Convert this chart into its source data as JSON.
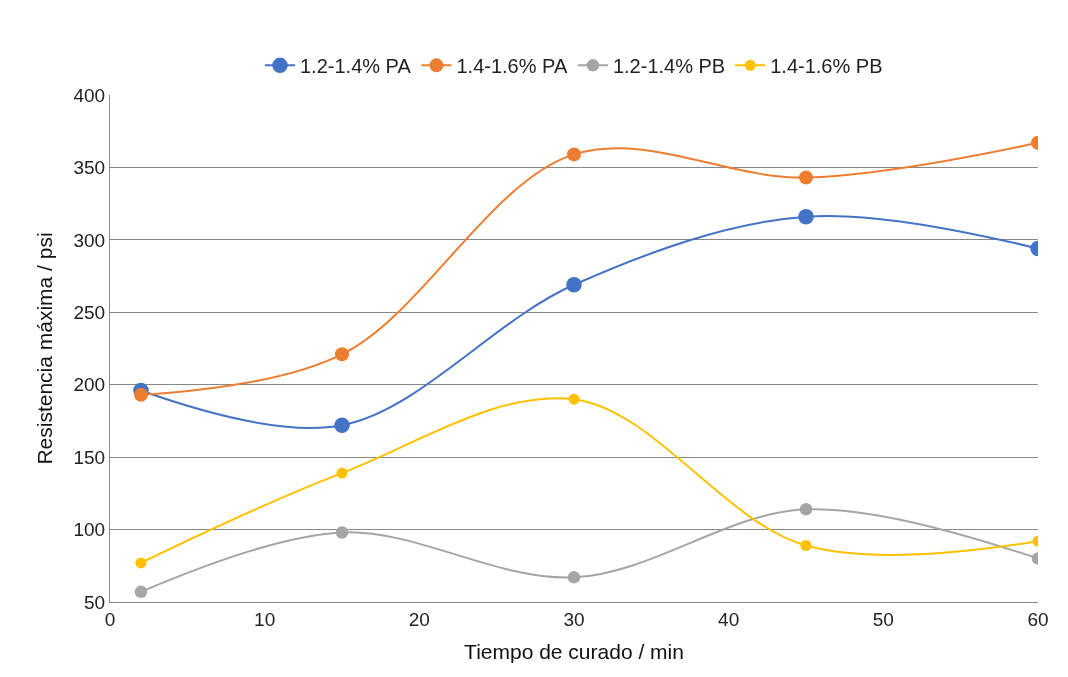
{
  "chart_data": {
    "type": "line",
    "xlabel": "Tiempo de curado / min",
    "ylabel": "Resistencia máxima / psi",
    "x": [
      2,
      15,
      30,
      45,
      60
    ],
    "series": [
      {
        "name": "1.2-1.4% PA",
        "color": "#4472c4",
        "values": [
          196,
          172,
          269,
          316,
          294
        ]
      },
      {
        "name": "1.4-1.6% PA",
        "color": "#ed7d31",
        "values": [
          193,
          221,
          359,
          343,
          367
        ]
      },
      {
        "name": "1.2-1.4% PB",
        "color": "#a5a5a5",
        "values": [
          57,
          98,
          67,
          114,
          80
        ]
      },
      {
        "name": "1.4-1.6% PB",
        "color": "#ffc000",
        "values": [
          77,
          139,
          190,
          89,
          92
        ]
      }
    ],
    "xlim": [
      0,
      60
    ],
    "xticks": [
      0,
      10,
      20,
      30,
      40,
      50,
      60
    ],
    "ylim": [
      50,
      400
    ],
    "yticks": [
      50,
      100,
      150,
      200,
      250,
      300,
      350,
      400
    ],
    "grid": "y",
    "legend": "top",
    "marker": "circle",
    "line_style": "solid"
  }
}
